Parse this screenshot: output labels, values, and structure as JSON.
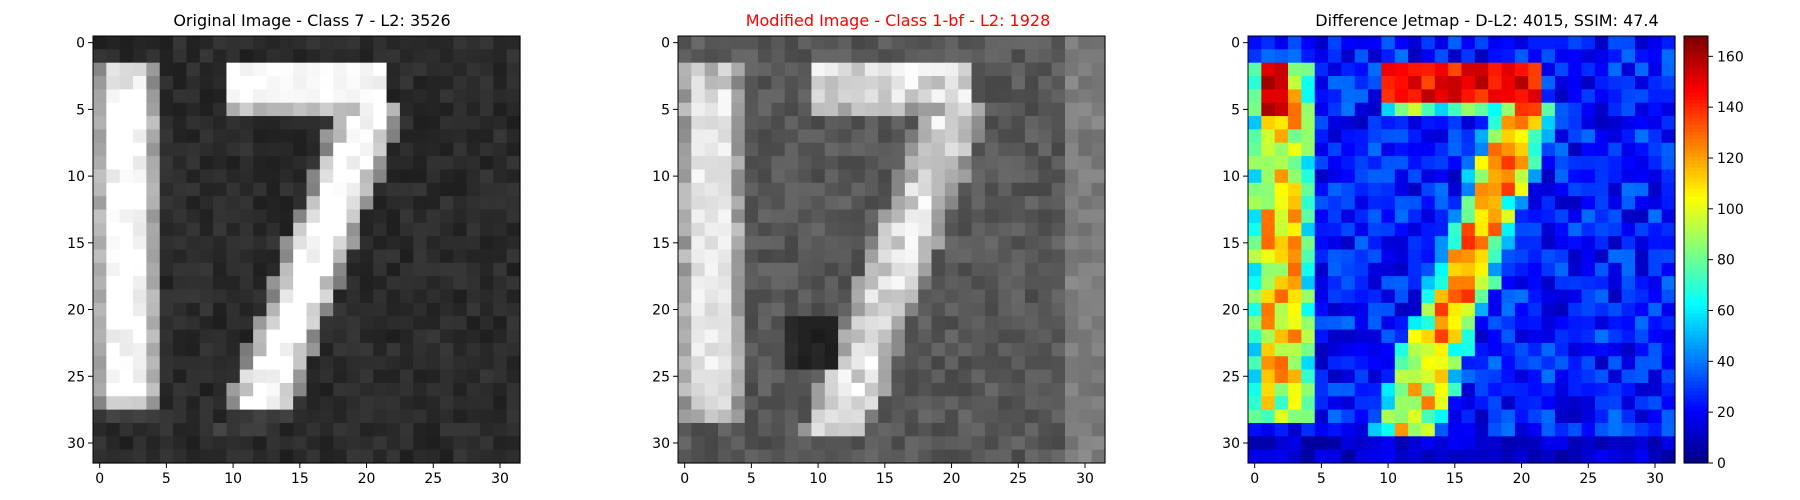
{
  "chart_data": [
    {
      "type": "heatmap",
      "title": "Original Image - Class 7 - L2: 3526",
      "title_color": "#000000",
      "colormap": "gray",
      "xlim": [
        -0.5,
        31.5
      ],
      "ylim": [
        31.5,
        -0.5
      ],
      "xticks": [
        0,
        5,
        10,
        15,
        20,
        25,
        30
      ],
      "yticks": [
        0,
        5,
        10,
        15,
        20,
        25,
        30
      ],
      "grid": false,
      "description": "32x32 grayscale digit image showing a bright vertical bar (1) on left and a bright 7 shape; background dark.",
      "digit": "17",
      "intensity": {
        "background": 35,
        "stroke": 215,
        "peak": 245
      }
    },
    {
      "type": "heatmap",
      "title": "Modified Image - Class 1-bf - L2: 1928",
      "title_color": "#ff0000",
      "colormap": "gray",
      "xlim": [
        -0.5,
        31.5
      ],
      "ylim": [
        31.5,
        -0.5
      ],
      "xticks": [
        0,
        5,
        10,
        15,
        20,
        25,
        30
      ],
      "yticks": [
        0,
        5,
        10,
        15,
        20,
        25,
        30
      ],
      "grid": false,
      "digit": "17",
      "intensity": {
        "background": 85,
        "stroke": 170,
        "peak": 235
      }
    },
    {
      "type": "heatmap",
      "title": "Difference Jetmap - D-L2: 4015, SSIM: 47.4",
      "title_color": "#000000",
      "colormap": "jet",
      "xlim": [
        -0.5,
        31.5
      ],
      "ylim": [
        31.5,
        -0.5
      ],
      "xticks": [
        0,
        5,
        10,
        15,
        20,
        25,
        30
      ],
      "yticks": [
        0,
        5,
        10,
        15,
        20,
        25,
        30
      ],
      "grid": false,
      "colorbar": {
        "min": 0,
        "max": 168,
        "ticks": [
          0,
          20,
          40,
          60,
          80,
          100,
          120,
          140,
          160
        ]
      },
      "digit": "17"
    }
  ]
}
